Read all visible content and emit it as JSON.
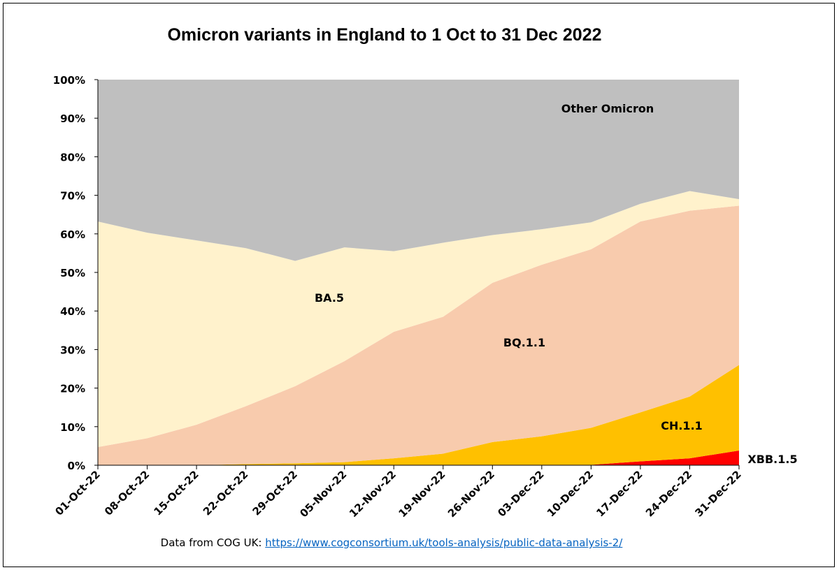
{
  "chart_data": {
    "type": "area",
    "stacked": true,
    "title": "Omicron variants in England to 1 Oct to 31 Dec 2022",
    "xlabel": "",
    "ylabel": "",
    "ylim": [
      0,
      100
    ],
    "y_ticks": [
      "0%",
      "10%",
      "20%",
      "30%",
      "40%",
      "50%",
      "60%",
      "70%",
      "80%",
      "90%",
      "100%"
    ],
    "categories": [
      "01-Oct-22",
      "08-Oct-22",
      "15-Oct-22",
      "22-Oct-22",
      "29-Oct-22",
      "05-Nov-22",
      "12-Nov-22",
      "19-Nov-22",
      "26-Nov-22",
      "03-Dec-22",
      "10-Dec-22",
      "17-Dec-22",
      "24-Dec-22",
      "31-Dec-22"
    ],
    "series": [
      {
        "name": "XBB.1.5",
        "color": "#ff0000",
        "values": [
          0,
          0,
          0,
          0,
          0,
          0,
          0,
          0,
          0,
          0,
          0.1,
          1,
          1.8,
          3.8
        ]
      },
      {
        "name": "CH.1.1",
        "color": "#ffc000",
        "values": [
          0,
          0,
          0,
          0.3,
          0.5,
          0.8,
          1.8,
          3,
          6,
          7.5,
          9.6,
          12.7,
          16,
          22.2
        ]
      },
      {
        "name": "BQ.1.1",
        "color": "#f8cbad",
        "values": [
          4.7,
          7,
          10.5,
          15,
          20,
          26.2,
          32.8,
          35.5,
          41.3,
          44.5,
          46.3,
          49.5,
          48.2,
          41.3
        ]
      },
      {
        "name": "BA.5",
        "color": "#fff2cc",
        "values": [
          58.5,
          53.3,
          47.8,
          41,
          32.5,
          29.5,
          20.9,
          19.2,
          12.4,
          9.2,
          7,
          4.6,
          5.1,
          1.7
        ]
      },
      {
        "name": "Other Omicron",
        "color": "#bfbfbf",
        "values": [
          36.8,
          39.7,
          41.7,
          43.7,
          47,
          43.5,
          44.5,
          42.3,
          40.3,
          38.8,
          37,
          32.2,
          28.9,
          31
        ]
      }
    ],
    "grid": false,
    "legend": "none (inline labels)"
  },
  "footer": {
    "prefix": "Data from COG UK: ",
    "link": "https://www.cogconsortium.uk/tools-analysis/public-data-analysis-2/"
  }
}
